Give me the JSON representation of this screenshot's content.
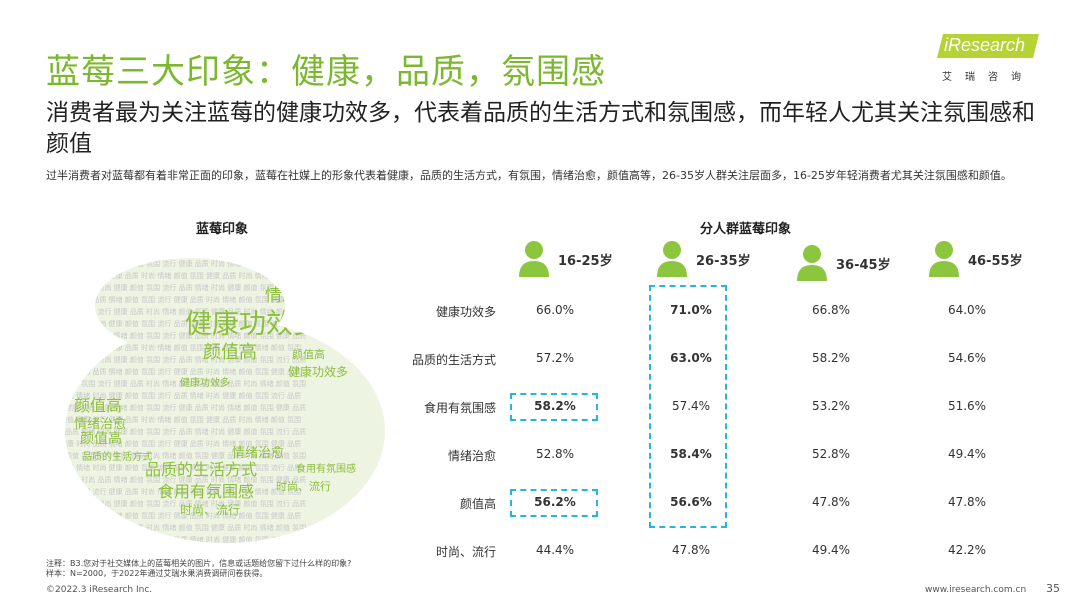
{
  "header": {
    "title": "蓝莓三大印象：健康，品质，氛围感",
    "logo_text": "iResearch",
    "logo_sub": "艾瑞咨询",
    "subtitle": "消费者最为关注蓝莓的健康功效多，代表着品质的生活方式和氛围感，而年轻人尤其关注氛围感和颜值",
    "description": "过半消费者对蓝莓都有着非常正面的印象，蓝莓在社媒上的形象代表着健康，品质的生活方式，有氛围，情绪治愈，颜值高等，26-35岁人群关注层面多，16-25岁年轻消费者尤其关注氛围感和颜值。"
  },
  "left_section": {
    "title": "蓝莓印象",
    "cloud_words": [
      "健康功效多",
      "情绪治愈",
      "颜值高",
      "品质的生活方式",
      "食用有氛围感",
      "时尚、流行",
      "颜值高",
      "情绪治愈",
      "颜值高",
      "健康功效多",
      "情绪治愈",
      "时尚、流行",
      "食用有氛围感",
      "健康功效多",
      "颜值高",
      "品质的生活方式"
    ]
  },
  "right_section": {
    "title": "分人群蓝莓印象",
    "groups": [
      "16-25岁",
      "26-35岁",
      "36-45岁",
      "46-55岁"
    ],
    "rows": [
      {
        "label": "健康功效多",
        "values": [
          "66.0%",
          "71.0%",
          "66.8%",
          "64.0%"
        ]
      },
      {
        "label": "品质的生活方式",
        "values": [
          "57.2%",
          "63.0%",
          "58.2%",
          "54.6%"
        ]
      },
      {
        "label": "食用有氛围感",
        "values": [
          "58.2%",
          "57.4%",
          "53.2%",
          "51.6%"
        ]
      },
      {
        "label": "情绪治愈",
        "values": [
          "52.8%",
          "58.4%",
          "52.8%",
          "49.4%"
        ]
      },
      {
        "label": "颜值高",
        "values": [
          "56.2%",
          "56.6%",
          "47.8%",
          "47.8%"
        ]
      },
      {
        "label": "时尚、流行",
        "values": [
          "44.4%",
          "47.8%",
          "49.4%",
          "42.2%"
        ]
      }
    ]
  },
  "footer": {
    "note1": "注释：B3.您对于社交媒体上的蓝莓相关的图片，信息或话题给您留下过什么样的印象?",
    "note2": "样本：N=2000，于2022年通过艾瑞水果消费调研问卷获得。",
    "copyright": "©2022.3 iResearch Inc.",
    "website": "www.iresearch.com.cn",
    "page_number": "35"
  },
  "colors": {
    "accent": "#7cb82f",
    "icon": "#8cc63f",
    "highlight_box": "#27b5d8"
  }
}
